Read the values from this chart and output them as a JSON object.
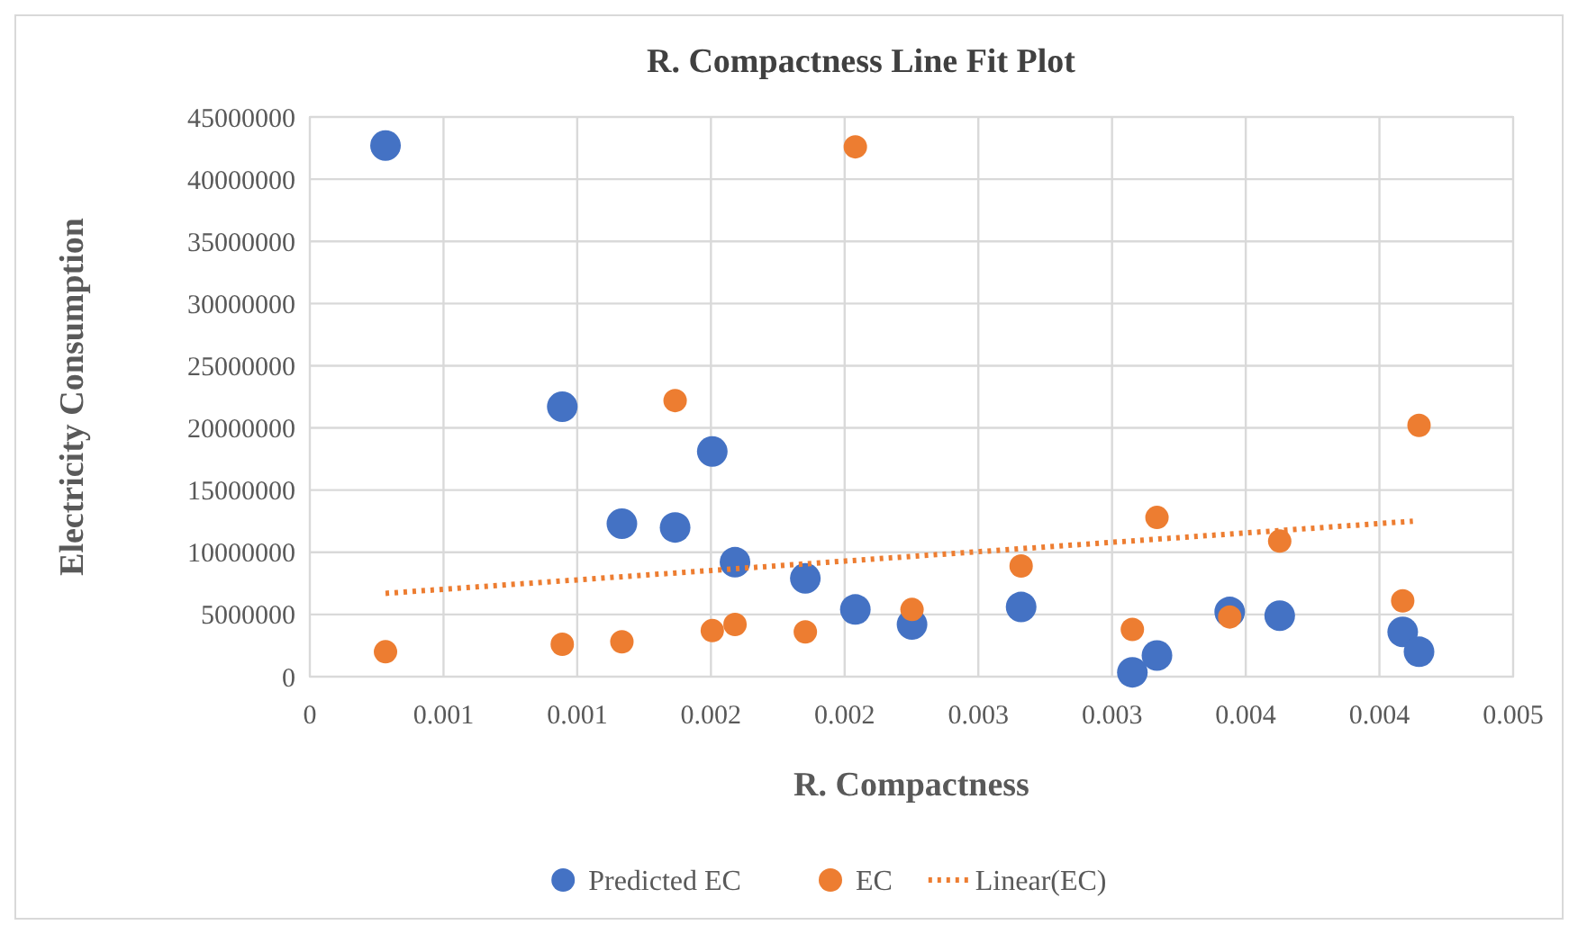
{
  "chart_data": {
    "type": "scatter",
    "title": "R. Compactness Line Fit Plot",
    "xlabel": "R. Compactness",
    "ylabel": "Electricity Consumption",
    "xlim": [
      0,
      0.0045
    ],
    "ylim": [
      0,
      45000000
    ],
    "xticks": [
      0,
      {
        "value": 0.0005,
        "label": "0.001"
      },
      0.001,
      {
        "value": 0.0015,
        "label": "0.002"
      },
      0.002,
      {
        "value": 0.0025,
        "label": "0.003"
      },
      0.003,
      {
        "value": 0.0035,
        "label": "0.004"
      },
      0.004,
      {
        "value": 0.0045,
        "label": "0.005"
      }
    ],
    "yticks": [
      0,
      5000000,
      10000000,
      15000000,
      20000000,
      25000000,
      30000000,
      35000000,
      40000000,
      45000000
    ],
    "grid": true,
    "legend": "bottom",
    "marker": "circle",
    "series": [
      {
        "name": "Predicted EC",
        "color": "#4472c4",
        "x": [
          0.000283,
          0.000944,
          0.001505,
          0.001167,
          0.001366,
          0.00159,
          0.001853,
          0.00204,
          0.002252,
          0.00266,
          0.003076,
          0.003168,
          0.00344,
          0.003627,
          0.004087,
          0.004148
        ],
        "values": [
          42700000,
          21700000,
          18100000,
          12300000,
          12000000,
          9200000,
          7900000,
          5400000,
          4200000,
          5600000,
          350000,
          1700000,
          5200000,
          4900000,
          3600000,
          2000000
        ]
      },
      {
        "name": "EC",
        "color": "#ed7d31",
        "x": [
          0.000283,
          0.000944,
          0.001167,
          0.001366,
          0.001505,
          0.00159,
          0.001853,
          0.00204,
          0.002252,
          0.00266,
          0.003076,
          0.003168,
          0.00344,
          0.003627,
          0.004087,
          0.004148
        ],
        "values": [
          2000000,
          2600000,
          2800000,
          22200000,
          3700000,
          4200000,
          3600000,
          42600000,
          5400000,
          8900000,
          3800000,
          12800000,
          4800000,
          10900000,
          6100000,
          20200000
        ]
      },
      {
        "name": "Linear(EC)",
        "type": "line",
        "line_style": "dotted",
        "marker": "none",
        "color": "#ed7d31",
        "x": [
          0.000283,
          0.004125
        ],
        "values": [
          6700000,
          12500000
        ]
      }
    ]
  }
}
